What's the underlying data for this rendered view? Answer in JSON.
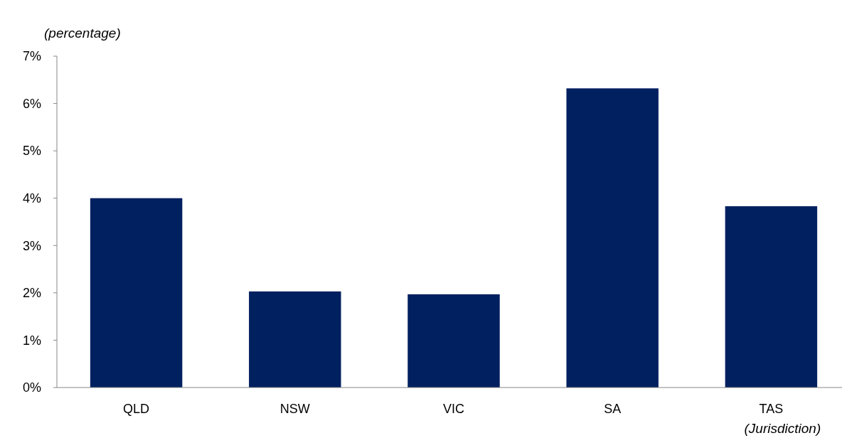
{
  "chart_data": {
    "type": "bar",
    "ylabel": "(percentage)",
    "xlabel": "(Jurisdiction)",
    "categories": [
      "QLD",
      "NSW",
      "VIC",
      "SA",
      "TAS"
    ],
    "values": [
      4.0,
      2.03,
      1.97,
      6.32,
      3.83
    ],
    "color": "#002060",
    "ylim": [
      0,
      7
    ],
    "yticks": [
      {
        "value": 0,
        "label": "0%"
      },
      {
        "value": 1,
        "label": "1%"
      },
      {
        "value": 2,
        "label": "2%"
      },
      {
        "value": 3,
        "label": "3%"
      },
      {
        "value": 4,
        "label": "4%"
      },
      {
        "value": 5,
        "label": "5%"
      },
      {
        "value": 6,
        "label": "6%"
      },
      {
        "value": 7,
        "label": "7%"
      }
    ],
    "grid": false
  }
}
